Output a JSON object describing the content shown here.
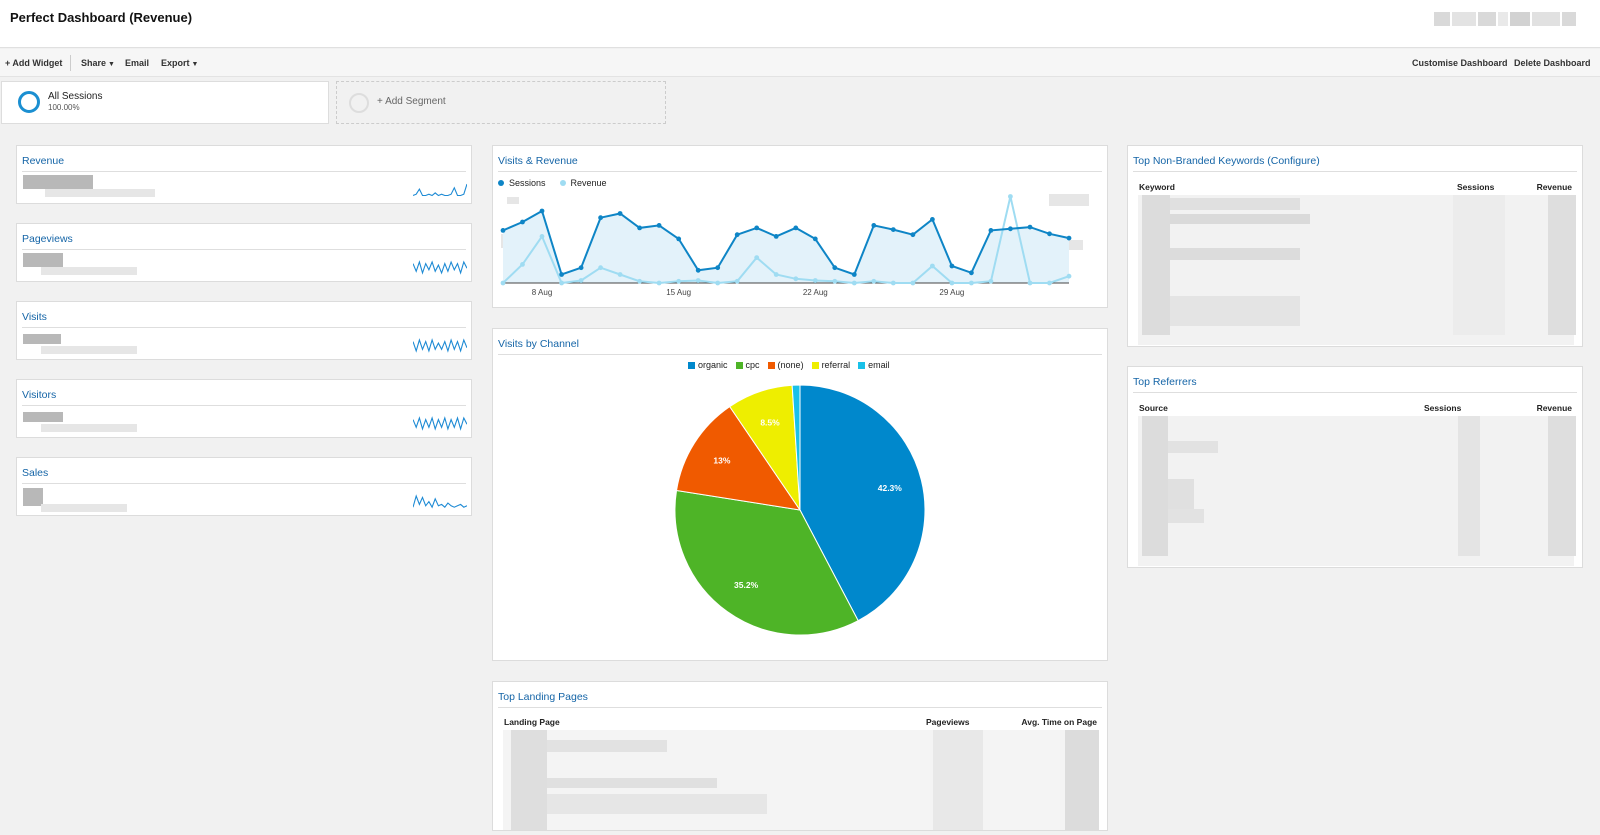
{
  "header": {
    "title": "Perfect Dashboard (Revenue)"
  },
  "toolbar": {
    "add_widget": "+ Add Widget",
    "share": "Share",
    "email": "Email",
    "export": "Export",
    "customise": "Customise Dashboard",
    "delete": "Delete Dashboard"
  },
  "segments": [
    {
      "name": "All Sessions",
      "percent": "100.00%"
    },
    {
      "name": "+ Add Segment"
    }
  ],
  "scorecards": [
    {
      "title": "Revenue",
      "sparkline": [
        2,
        3,
        7,
        2,
        2,
        3,
        2,
        4,
        2,
        3,
        2,
        2,
        3,
        8,
        2,
        2,
        3,
        11
      ]
    },
    {
      "title": "Pageviews",
      "sparkline": [
        8,
        3,
        9,
        2,
        8,
        4,
        9,
        3,
        7,
        2,
        8,
        3,
        9,
        4,
        8,
        2,
        9,
        5
      ]
    },
    {
      "title": "Visits",
      "sparkline": [
        8,
        2,
        9,
        3,
        8,
        2,
        9,
        3,
        7,
        3,
        8,
        2,
        9,
        3,
        8,
        2,
        9,
        4
      ]
    },
    {
      "title": "Visitors",
      "sparkline": [
        8,
        3,
        9,
        2,
        8,
        3,
        9,
        2,
        8,
        3,
        9,
        2,
        8,
        3,
        9,
        2,
        9,
        5
      ]
    },
    {
      "title": "Sales",
      "sparkline": [
        2,
        10,
        4,
        9,
        3,
        6,
        2,
        8,
        3,
        4,
        2,
        5,
        3,
        2,
        3,
        4,
        2,
        3
      ]
    }
  ],
  "visits_revenue": {
    "title": "Visits & Revenue",
    "legend": [
      "Sessions",
      "Revenue"
    ],
    "colors": {
      "sessions": "#0e85c6",
      "revenue": "#9fdcf2"
    },
    "chart_data": {
      "type": "line",
      "x_ticks": [
        "8 Aug",
        "15 Aug",
        "22 Aug",
        "29 Aug"
      ],
      "series": [
        {
          "name": "Sessions",
          "values": [
            62,
            72,
            85,
            10,
            18,
            77,
            82,
            65,
            68,
            52,
            15,
            18,
            57,
            65,
            55,
            65,
            52,
            18,
            10,
            68,
            63,
            57,
            75,
            20,
            12,
            62,
            64,
            66,
            58,
            53
          ]
        },
        {
          "name": "Revenue",
          "values": [
            0,
            22,
            55,
            0,
            3,
            18,
            10,
            2,
            0,
            2,
            3,
            0,
            2,
            30,
            10,
            5,
            3,
            2,
            0,
            2,
            0,
            0,
            20,
            0,
            0,
            2,
            102,
            0,
            0,
            8
          ]
        }
      ]
    }
  },
  "channels": {
    "title": "Visits by Channel",
    "chart_data": {
      "type": "pie",
      "categories": [
        "organic",
        "cpc",
        "(none)",
        "referral",
        "email"
      ],
      "values": [
        42.3,
        35.2,
        13,
        8.5,
        1.0
      ],
      "labels": [
        "42.3%",
        "35.2%",
        "13%",
        "8.5%",
        ""
      ],
      "colors": [
        "#0088cc",
        "#4eb427",
        "#f05a00",
        "#eeee00",
        "#19c1e9"
      ]
    }
  },
  "keywords": {
    "title": "Top Non-Branded Keywords (Configure)",
    "columns": [
      "Keyword",
      "Sessions",
      "Revenue"
    ]
  },
  "referrers": {
    "title": "Top Referrers",
    "columns": [
      "Source",
      "Sessions",
      "Revenue"
    ]
  },
  "landing": {
    "title": "Top Landing Pages",
    "columns": [
      "Landing Page",
      "Pageviews",
      "Avg. Time on Page"
    ]
  }
}
